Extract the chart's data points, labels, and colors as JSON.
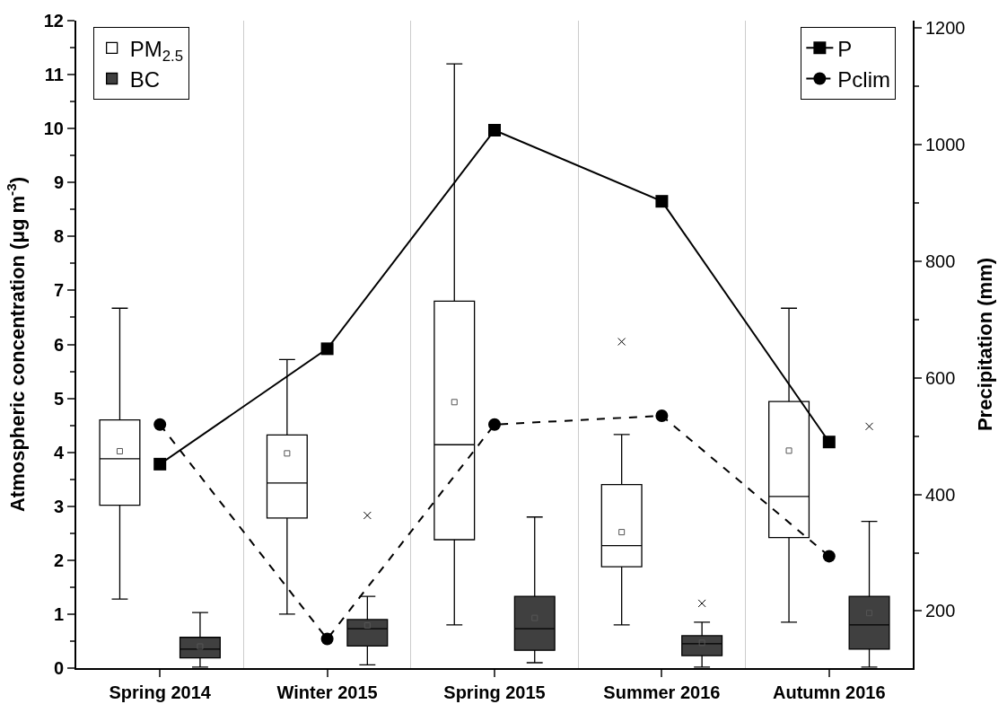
{
  "chart_data": {
    "type": "box",
    "categories": [
      "Spring 2014",
      "Winter 2015",
      "Spring 2015",
      "Summer 2016",
      "Autumn 2016"
    ],
    "ylabel": "Atmospheric concentration (μg m$^{-3}$)",
    "y2label": "Precipitation (mm)",
    "ylim": [
      0,
      12
    ],
    "yticks": [
      0,
      1,
      2,
      3,
      4,
      5,
      6,
      7,
      8,
      9,
      10,
      11,
      12
    ],
    "y2lim": [
      102,
      1213
    ],
    "y2ticks": [
      200,
      400,
      600,
      800,
      1000,
      1200
    ],
    "grid": "x",
    "legend": "top",
    "series": [
      {
        "name": "PM$_{2.5}$",
        "color": "#ffffff",
        "boxes": [
          {
            "low": 1.28,
            "q1": 3.02,
            "median": 3.88,
            "q3": 4.6,
            "high": 6.67,
            "mean": 4.02
          },
          {
            "low": 1.0,
            "q1": 2.78,
            "median": 3.43,
            "q3": 4.32,
            "high": 5.72,
            "mean": 3.98
          },
          {
            "low": 0.8,
            "q1": 2.38,
            "median": 4.14,
            "q3": 6.8,
            "high": 11.2,
            "mean": 4.93
          },
          {
            "low": 0.8,
            "q1": 1.88,
            "median": 2.27,
            "q3": 3.4,
            "high": 4.33,
            "mean": 2.52,
            "outliers": [
              6.05
            ]
          },
          {
            "low": 0.85,
            "q1": 2.42,
            "median": 3.18,
            "q3": 4.94,
            "high": 6.67,
            "mean": 4.03
          }
        ]
      },
      {
        "name": "BC",
        "color": "#404040",
        "boxes": [
          {
            "low": 0.02,
            "q1": 0.19,
            "median": 0.35,
            "q3": 0.57,
            "high": 1.03,
            "mean": 0.4
          },
          {
            "low": 0.06,
            "q1": 0.41,
            "median": 0.73,
            "q3": 0.9,
            "high": 1.33,
            "mean": 0.79,
            "outliers": [
              2.83
            ]
          },
          {
            "low": 0.1,
            "q1": 0.33,
            "median": 0.73,
            "q3": 1.33,
            "high": 2.8,
            "mean": 0.93
          },
          {
            "low": 0.02,
            "q1": 0.23,
            "median": 0.45,
            "q3": 0.6,
            "high": 0.85,
            "mean": 0.47,
            "outliers": [
              1.2
            ]
          },
          {
            "low": 0.02,
            "q1": 0.35,
            "median": 0.8,
            "q3": 1.33,
            "high": 2.72,
            "mean": 1.02,
            "outliers": [
              4.48
            ]
          }
        ]
      },
      {
        "name": "P",
        "type": "line",
        "axis": "y2",
        "color": "#000000",
        "marker": "square",
        "line_style": "solid",
        "values": [
          452,
          650,
          1025,
          903,
          490
        ]
      },
      {
        "name": "Pclim",
        "type": "line",
        "axis": "y2",
        "color": "#000000",
        "marker": "circle",
        "line_style": "dashed",
        "values": [
          520,
          152,
          520,
          535,
          294
        ]
      }
    ]
  }
}
